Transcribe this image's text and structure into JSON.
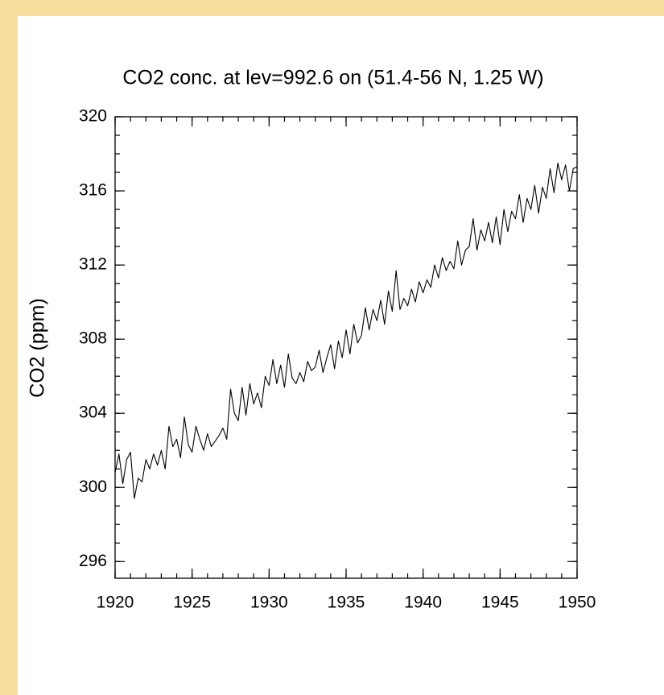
{
  "chart_data": {
    "type": "line",
    "title": "CO2 conc. at lev=992.6 on (51.4-56 N, 1.25 W)",
    "y_label": "CO2 (ppm)",
    "color": "#000000",
    "x": [
      1920,
      1920.25,
      1920.5,
      1920.75,
      1921,
      1921.25,
      1921.5,
      1921.75,
      1922,
      1922.25,
      1922.5,
      1922.75,
      1923,
      1923.25,
      1923.5,
      1923.75,
      1924,
      1924.25,
      1924.5,
      1924.75,
      1925,
      1925.25,
      1925.5,
      1925.75,
      1926,
      1926.25,
      1926.5,
      1926.75,
      1927,
      1927.25,
      1927.5,
      1927.75,
      1928,
      1928.25,
      1928.5,
      1928.75,
      1929,
      1929.25,
      1929.5,
      1929.75,
      1930,
      1930.25,
      1930.5,
      1930.75,
      1931,
      1931.25,
      1931.5,
      1931.75,
      1932,
      1932.25,
      1932.5,
      1932.75,
      1933,
      1933.25,
      1933.5,
      1933.75,
      1934,
      1934.25,
      1934.5,
      1934.75,
      1935,
      1935.25,
      1935.5,
      1935.75,
      1936,
      1936.25,
      1936.5,
      1936.75,
      1937,
      1937.25,
      1937.5,
      1937.75,
      1938,
      1938.25,
      1938.5,
      1938.75,
      1939,
      1939.25,
      1939.5,
      1939.75,
      1940,
      1940.25,
      1940.5,
      1940.75,
      1941,
      1941.25,
      1941.5,
      1941.75,
      1942,
      1942.25,
      1942.5,
      1942.75,
      1943,
      1943.25,
      1943.5,
      1943.75,
      1944,
      1944.25,
      1944.5,
      1944.75,
      1945,
      1945.25,
      1945.5,
      1945.75,
      1946,
      1946.25,
      1946.5,
      1946.75,
      1947,
      1947.25,
      1947.5,
      1947.75,
      1948,
      1948.25,
      1948.5,
      1948.75,
      1949,
      1949.25,
      1949.5,
      1949.75,
      1950
    ],
    "values": [
      300.8,
      301.8,
      300.2,
      301.5,
      301.9,
      299.4,
      300.5,
      300.3,
      301.5,
      301.0,
      301.8,
      301.2,
      302.0,
      301.0,
      303.3,
      302.2,
      302.6,
      301.6,
      303.8,
      302.3,
      301.9,
      303.3,
      302.6,
      302.0,
      302.9,
      302.2,
      302.5,
      302.8,
      303.2,
      302.6,
      305.3,
      304.0,
      303.6,
      305.4,
      303.9,
      305.6,
      304.5,
      305.1,
      304.3,
      306.0,
      305.5,
      306.9,
      305.6,
      306.6,
      305.4,
      307.2,
      305.9,
      305.6,
      306.2,
      305.7,
      306.8,
      306.3,
      306.5,
      307.4,
      306.2,
      307.0,
      307.7,
      306.4,
      307.9,
      307.0,
      308.5,
      307.2,
      308.8,
      307.8,
      308.2,
      309.7,
      308.5,
      309.6,
      309.0,
      310.1,
      308.8,
      310.6,
      309.5,
      311.7,
      309.6,
      310.2,
      309.8,
      310.7,
      310.0,
      311.1,
      310.5,
      311.2,
      310.8,
      312.0,
      311.3,
      312.4,
      311.7,
      312.2,
      311.8,
      313.3,
      312.0,
      312.8,
      313.0,
      314.5,
      312.8,
      313.9,
      313.3,
      314.3,
      313.2,
      314.6,
      313.1,
      315.0,
      313.8,
      314.9,
      314.5,
      315.8,
      314.3,
      315.6,
      315.0,
      316.3,
      314.8,
      316.2,
      315.6,
      317.2,
      315.9,
      317.5,
      316.6,
      317.4,
      316.0,
      317.2,
      317.3
    ],
    "xlim": [
      1920,
      1950
    ],
    "xticks": [
      1920,
      1925,
      1930,
      1935,
      1940,
      1945,
      1950
    ],
    "ylim": [
      295.1,
      320
    ],
    "yticks": [
      296,
      300,
      304,
      308,
      312,
      316,
      320
    ],
    "grid": false
  }
}
